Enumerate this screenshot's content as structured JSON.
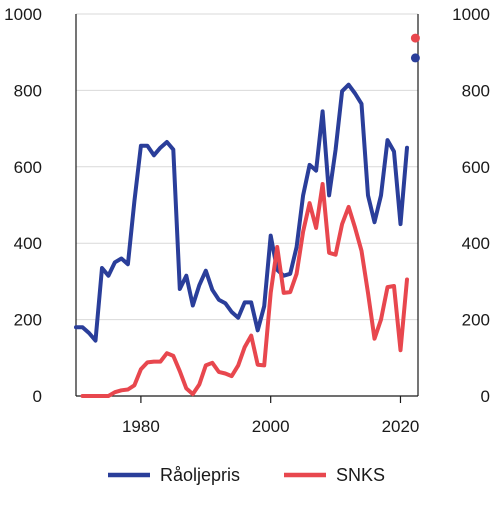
{
  "chart_data": {
    "type": "line",
    "x_ticks": [
      1980,
      2000,
      2020
    ],
    "y_ticks": [
      0,
      200,
      400,
      600,
      800,
      1000
    ],
    "xlim": [
      1970,
      2022.7
    ],
    "ylim": [
      0,
      1000
    ],
    "grid": "horizontal",
    "legend_position": "bottom",
    "series": [
      {
        "name": "Råoljepris",
        "color": "#2a3e9a",
        "x": [
          1970,
          1971,
          1972,
          1973,
          1974,
          1975,
          1976,
          1977,
          1978,
          1979,
          1980,
          1981,
          1982,
          1983,
          1984,
          1985,
          1986,
          1987,
          1988,
          1989,
          1990,
          1991,
          1992,
          1993,
          1994,
          1995,
          1996,
          1997,
          1998,
          1999,
          2000,
          2001,
          2002,
          2003,
          2004,
          2005,
          2006,
          2007,
          2008,
          2009,
          2010,
          2011,
          2012,
          2013,
          2014,
          2015,
          2016,
          2017,
          2018,
          2019,
          2020,
          2021
        ],
        "y": [
          180,
          180,
          165,
          145,
          335,
          315,
          350,
          360,
          345,
          510,
          655,
          655,
          630,
          650,
          665,
          645,
          280,
          315,
          237,
          290,
          328,
          278,
          252,
          243,
          220,
          205,
          245,
          245,
          172,
          235,
          420,
          330,
          315,
          320,
          390,
          525,
          605,
          590,
          745,
          525,
          645,
          798,
          815,
          792,
          765,
          525,
          455,
          525,
          670,
          640,
          450,
          650
        ]
      },
      {
        "name": "SNKS",
        "color": "#e8474e",
        "x": [
          1971,
          1972,
          1973,
          1974,
          1975,
          1976,
          1977,
          1978,
          1979,
          1980,
          1981,
          1982,
          1983,
          1984,
          1985,
          1986,
          1987,
          1988,
          1989,
          1990,
          1991,
          1992,
          1993,
          1994,
          1995,
          1996,
          1997,
          1998,
          1999,
          2000,
          2001,
          2002,
          2003,
          2004,
          2005,
          2006,
          2007,
          2008,
          2009,
          2010,
          2011,
          2012,
          2013,
          2014,
          2015,
          2016,
          2017,
          2018,
          2019,
          2020,
          2021
        ],
        "y": [
          0,
          0,
          0,
          0,
          0,
          10,
          15,
          17,
          28,
          70,
          88,
          90,
          90,
          112,
          105,
          65,
          20,
          5,
          30,
          80,
          87,
          63,
          59,
          52,
          80,
          128,
          158,
          82,
          80,
          270,
          390,
          270,
          272,
          320,
          430,
          505,
          440,
          555,
          375,
          370,
          450,
          495,
          440,
          380,
          270,
          150,
          200,
          285,
          288,
          120,
          305
        ]
      }
    ],
    "markers": [
      {
        "series": "SNKS",
        "x": 2022.3,
        "y": 937,
        "color": "#e8474e"
      },
      {
        "series": "Råoljepris",
        "x": 2022.3,
        "y": 885,
        "color": "#2a3e9a"
      }
    ]
  }
}
